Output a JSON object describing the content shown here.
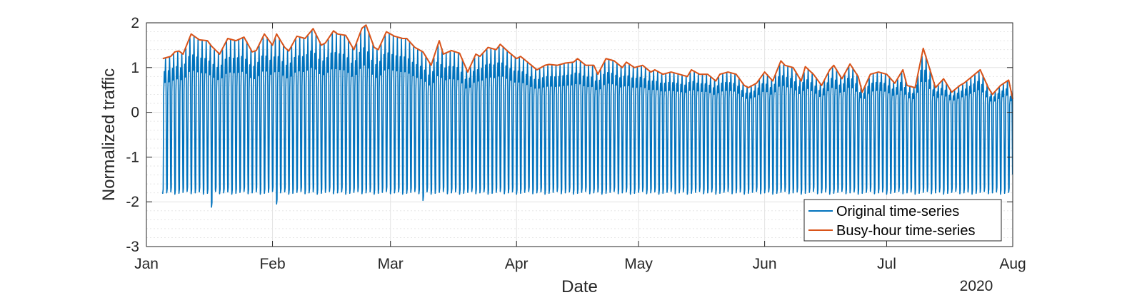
{
  "chart_data": {
    "type": "line",
    "title": "",
    "xlabel": "Date",
    "ylabel": "Normalized traffic",
    "x_axis_year_label": "2020",
    "ylim": [
      -3,
      2
    ],
    "y_ticks": [
      "2",
      "1",
      "0",
      "-1",
      "-2",
      "-3"
    ],
    "y_tick_values": [
      2,
      1,
      0,
      -1,
      -2,
      -3
    ],
    "x_ticks": [
      "Jan",
      "Feb",
      "Mar",
      "Apr",
      "May",
      "Jun",
      "Jul",
      "Aug"
    ],
    "x_tick_dates": [
      "2020-01-01",
      "2020-02-01",
      "2020-03-01",
      "2020-04-01",
      "2020-05-01",
      "2020-06-01",
      "2020-07-01",
      "2020-08-01"
    ],
    "xlim": [
      "2020-01-01",
      "2020-08-01"
    ],
    "grid": true,
    "legend_position": "bottom-right",
    "series": [
      {
        "name": "Original time-series",
        "color": "#0072BD",
        "description": "hourly values oscillating daily between a low near -1.8 and the daily busy-hour peak",
        "typical_min": -1.8,
        "outlier_minima": [
          {
            "date": "2020-01-17",
            "value": -2.12
          },
          {
            "date": "2020-02-02",
            "value": -2.05
          },
          {
            "date": "2020-03-09",
            "value": -1.97
          }
        ]
      },
      {
        "name": "Busy-hour time-series",
        "color": "#D95319",
        "points": [
          [
            "2020-01-05",
            1.2
          ],
          [
            "2020-01-07",
            1.25
          ],
          [
            "2020-01-08",
            1.35
          ],
          [
            "2020-01-09",
            1.37
          ],
          [
            "2020-01-10",
            1.3
          ],
          [
            "2020-01-12",
            1.75
          ],
          [
            "2020-01-14",
            1.62
          ],
          [
            "2020-01-16",
            1.6
          ],
          [
            "2020-01-17",
            1.48
          ],
          [
            "2020-01-19",
            1.3
          ],
          [
            "2020-01-21",
            1.65
          ],
          [
            "2020-01-23",
            1.6
          ],
          [
            "2020-01-25",
            1.68
          ],
          [
            "2020-01-27",
            1.35
          ],
          [
            "2020-01-28",
            1.38
          ],
          [
            "2020-01-30",
            1.75
          ],
          [
            "2020-02-01",
            1.5
          ],
          [
            "2020-02-02",
            1.75
          ],
          [
            "2020-02-04",
            1.45
          ],
          [
            "2020-02-05",
            1.37
          ],
          [
            "2020-02-07",
            1.7
          ],
          [
            "2020-02-09",
            1.65
          ],
          [
            "2020-02-11",
            1.87
          ],
          [
            "2020-02-13",
            1.5
          ],
          [
            "2020-02-14",
            1.55
          ],
          [
            "2020-02-16",
            1.82
          ],
          [
            "2020-02-17",
            1.75
          ],
          [
            "2020-02-19",
            1.72
          ],
          [
            "2020-02-21",
            1.4
          ],
          [
            "2020-02-23",
            1.88
          ],
          [
            "2020-02-24",
            1.95
          ],
          [
            "2020-02-26",
            1.45
          ],
          [
            "2020-02-27",
            1.4
          ],
          [
            "2020-02-29",
            1.8
          ],
          [
            "2020-03-02",
            1.7
          ],
          [
            "2020-03-04",
            1.65
          ],
          [
            "2020-03-05",
            1.65
          ],
          [
            "2020-03-07",
            1.45
          ],
          [
            "2020-03-09",
            1.35
          ],
          [
            "2020-03-11",
            1.05
          ],
          [
            "2020-03-13",
            1.6
          ],
          [
            "2020-03-14",
            1.3
          ],
          [
            "2020-03-16",
            1.38
          ],
          [
            "2020-03-18",
            1.32
          ],
          [
            "2020-03-20",
            0.9
          ],
          [
            "2020-03-22",
            1.3
          ],
          [
            "2020-03-23",
            1.25
          ],
          [
            "2020-03-25",
            1.45
          ],
          [
            "2020-03-27",
            1.4
          ],
          [
            "2020-03-28",
            1.52
          ],
          [
            "2020-03-30",
            1.35
          ],
          [
            "2020-04-01",
            1.2
          ],
          [
            "2020-04-02",
            1.25
          ],
          [
            "2020-04-04",
            1.1
          ],
          [
            "2020-04-06",
            0.95
          ],
          [
            "2020-04-08",
            1.05
          ],
          [
            "2020-04-09",
            1.07
          ],
          [
            "2020-04-11",
            1.05
          ],
          [
            "2020-04-13",
            1.1
          ],
          [
            "2020-04-15",
            1.12
          ],
          [
            "2020-04-16",
            1.2
          ],
          [
            "2020-04-18",
            1.05
          ],
          [
            "2020-04-20",
            1.05
          ],
          [
            "2020-04-21",
            0.85
          ],
          [
            "2020-04-23",
            1.2
          ],
          [
            "2020-04-25",
            1.15
          ],
          [
            "2020-04-27",
            1.0
          ],
          [
            "2020-04-28",
            1.12
          ],
          [
            "2020-04-30",
            1.0
          ],
          [
            "2020-05-02",
            1.05
          ],
          [
            "2020-05-04",
            0.9
          ],
          [
            "2020-05-05",
            0.95
          ],
          [
            "2020-05-07",
            0.85
          ],
          [
            "2020-05-09",
            0.9
          ],
          [
            "2020-05-11",
            0.85
          ],
          [
            "2020-05-13",
            0.8
          ],
          [
            "2020-05-14",
            0.95
          ],
          [
            "2020-05-16",
            0.85
          ],
          [
            "2020-05-18",
            0.85
          ],
          [
            "2020-05-20",
            0.7
          ],
          [
            "2020-05-21",
            0.85
          ],
          [
            "2020-05-23",
            0.9
          ],
          [
            "2020-05-25",
            0.85
          ],
          [
            "2020-05-27",
            0.6
          ],
          [
            "2020-05-28",
            0.55
          ],
          [
            "2020-05-30",
            0.65
          ],
          [
            "2020-06-01",
            0.9
          ],
          [
            "2020-06-03",
            0.7
          ],
          [
            "2020-06-05",
            1.15
          ],
          [
            "2020-06-06",
            1.05
          ],
          [
            "2020-06-08",
            1.0
          ],
          [
            "2020-06-10",
            0.7
          ],
          [
            "2020-06-11",
            1.02
          ],
          [
            "2020-06-13",
            0.85
          ],
          [
            "2020-06-15",
            0.6
          ],
          [
            "2020-06-17",
            0.95
          ],
          [
            "2020-06-18",
            1.05
          ],
          [
            "2020-06-20",
            0.75
          ],
          [
            "2020-06-22",
            1.08
          ],
          [
            "2020-06-24",
            0.8
          ],
          [
            "2020-06-25",
            0.45
          ],
          [
            "2020-06-27",
            0.85
          ],
          [
            "2020-06-29",
            0.9
          ],
          [
            "2020-07-01",
            0.85
          ],
          [
            "2020-07-03",
            0.65
          ],
          [
            "2020-07-05",
            0.95
          ],
          [
            "2020-07-06",
            0.6
          ],
          [
            "2020-07-08",
            0.55
          ],
          [
            "2020-07-10",
            1.43
          ],
          [
            "2020-07-12",
            0.85
          ],
          [
            "2020-07-13",
            0.55
          ],
          [
            "2020-07-15",
            0.75
          ],
          [
            "2020-07-17",
            0.45
          ],
          [
            "2020-07-19",
            0.6
          ],
          [
            "2020-07-20",
            0.65
          ],
          [
            "2020-07-22",
            0.8
          ],
          [
            "2020-07-24",
            0.95
          ],
          [
            "2020-07-26",
            0.55
          ],
          [
            "2020-07-27",
            0.4
          ],
          [
            "2020-07-29",
            0.6
          ],
          [
            "2020-07-31",
            0.72
          ],
          [
            "2020-08-01",
            0.3
          ]
        ]
      }
    ]
  }
}
